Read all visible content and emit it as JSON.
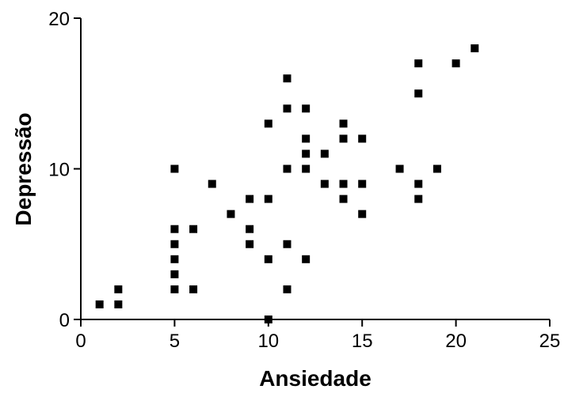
{
  "chart_data": {
    "type": "scatter",
    "xlabel": "Ansiedade",
    "ylabel": "Depressão",
    "xlim": [
      0,
      25
    ],
    "ylim": [
      0,
      20
    ],
    "x_ticks": [
      "0",
      "5",
      "10",
      "15",
      "20",
      "25"
    ],
    "y_ticks": [
      "0",
      "10",
      "20"
    ],
    "grid": false,
    "marker": "square",
    "marker_color": "#000000",
    "points": [
      [
        1,
        1
      ],
      [
        2,
        1
      ],
      [
        2,
        2
      ],
      [
        5,
        2
      ],
      [
        5,
        3
      ],
      [
        5,
        4
      ],
      [
        5,
        5
      ],
      [
        5,
        6
      ],
      [
        5,
        10
      ],
      [
        6,
        2
      ],
      [
        6,
        6
      ],
      [
        7,
        9
      ],
      [
        8,
        7
      ],
      [
        9,
        5
      ],
      [
        9,
        6
      ],
      [
        9,
        8
      ],
      [
        10,
        0
      ],
      [
        10,
        4
      ],
      [
        10,
        8
      ],
      [
        10,
        13
      ],
      [
        11,
        2
      ],
      [
        11,
        5
      ],
      [
        11,
        10
      ],
      [
        11,
        14
      ],
      [
        11,
        16
      ],
      [
        12,
        4
      ],
      [
        12,
        10
      ],
      [
        12,
        11
      ],
      [
        12,
        12
      ],
      [
        12,
        14
      ],
      [
        13,
        9
      ],
      [
        13,
        11
      ],
      [
        14,
        8
      ],
      [
        14,
        9
      ],
      [
        14,
        12
      ],
      [
        14,
        13
      ],
      [
        15,
        7
      ],
      [
        15,
        9
      ],
      [
        15,
        12
      ],
      [
        17,
        10
      ],
      [
        18,
        8
      ],
      [
        18,
        9
      ],
      [
        18,
        15
      ],
      [
        18,
        17
      ],
      [
        19,
        10
      ],
      [
        20,
        17
      ],
      [
        21,
        18
      ]
    ]
  }
}
